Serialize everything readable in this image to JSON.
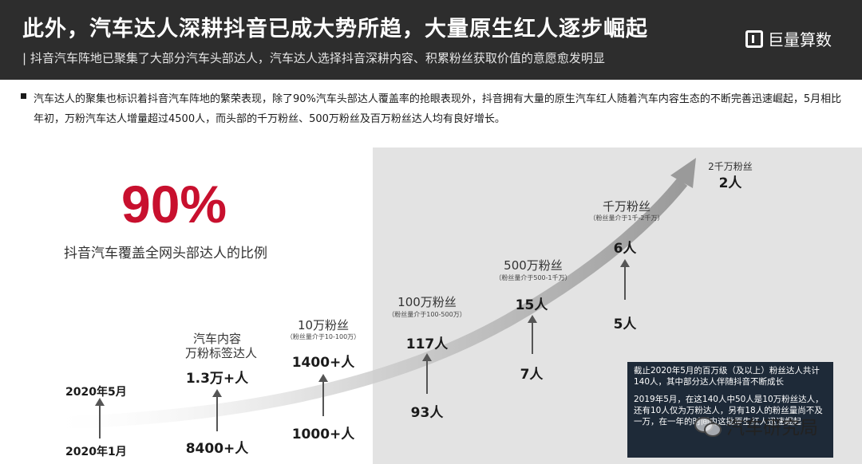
{
  "header": {
    "title": "此外，汽车达人深耕抖音已成大势所趋，大量原生红人逐步崛起",
    "subtitle": "| 抖音汽车阵地已聚集了大部分汽车头部达人，汽车达人选择抖音深耕内容、积累粉丝获取价值的意愿愈发明显",
    "brand": "巨量算数"
  },
  "intro": {
    "text": "汽车达人的聚集也标识着抖音汽车阵地的繁荣表现，除了90%汽车头部达人覆盖率的抢眼表现外，抖音拥有大量的原生汽车红人随着汽车内容生态的不断完善迅速崛起，5月相比年初，万粉汽车达人增量超过4500人，而头部的千万粉丝、500万粉丝及百万粉丝达人均有良好增长。"
  },
  "highlight": {
    "value": "90%",
    "label": "抖音汽车覆盖全网头部达人的比例"
  },
  "timeline": {
    "dates": {
      "may": "2020年5月",
      "jan": "2020年1月"
    },
    "tiers": [
      {
        "name_line1": "汽车内容",
        "name_line2": "万粉标签达人",
        "range": "",
        "jan": "8400+人",
        "may": "1.3万+人"
      },
      {
        "name_line1": "10万粉丝",
        "name_line2": "",
        "range": "（粉丝量介于10-100万）",
        "jan": "1000+人",
        "may": "1400+人"
      },
      {
        "name_line1": "100万粉丝",
        "name_line2": "",
        "range": "（粉丝量介于100-500万）",
        "jan": "93人",
        "may": "117人"
      },
      {
        "name_line1": "500万粉丝",
        "name_line2": "",
        "range": "（粉丝量介于500-1千万）",
        "jan": "7人",
        "may": "15人"
      },
      {
        "name_line1": "千万粉丝",
        "name_line2": "",
        "range": "（粉丝量介于1千-2千万）",
        "jan": "5人",
        "may": "6人"
      },
      {
        "name_line1": "2千万粉丝",
        "name_line2": "",
        "range": "",
        "jan": "",
        "may": "2人"
      }
    ]
  },
  "note": {
    "para1": "截止2020年5月的百万级（及以上）粉丝达人共计140人，其中部分达人伴随抖音不断成长",
    "para2": "2019年5月，在这140人中50人是10万粉丝达人，还有10人仅为万粉达人，另有18人的粉丝量尚不及一万，在一年的时间内这批原生红人迅速崛起"
  },
  "watermark": {
    "text": "汽车研究局"
  },
  "colors": {
    "accent_red": "#c8102e",
    "header_bg": "#2d2d2d",
    "panel_bg": "#e3e3e3",
    "note_bg": "#1e2a38"
  }
}
